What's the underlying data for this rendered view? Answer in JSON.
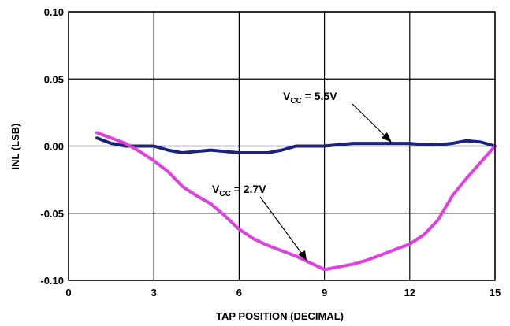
{
  "chart_data": {
    "type": "line",
    "title": "",
    "xlabel": "TAP POSITION (DECIMAL)",
    "ylabel": "INL (LSB)",
    "xlim": [
      0,
      15
    ],
    "ylim": [
      -0.1,
      0.1
    ],
    "x_ticks": [
      "0",
      "3",
      "6",
      "9",
      "12",
      "15"
    ],
    "y_ticks": [
      "0.10",
      "0.05",
      "0.00",
      "-0.05",
      "-0.10"
    ],
    "grid": true,
    "series": [
      {
        "color": "#1a237e",
        "x": [
          1,
          1.5,
          2,
          2.5,
          3,
          3.5,
          4,
          4.5,
          5,
          5.5,
          6,
          6.5,
          7,
          7.5,
          8,
          8.5,
          9,
          9.5,
          10,
          10.5,
          11,
          11.5,
          12,
          12.5,
          13,
          13.5,
          14,
          14.5,
          15
        ],
        "y": [
          0.006,
          0.002,
          0.0,
          0.0,
          0.0,
          -0.003,
          -0.005,
          -0.004,
          -0.003,
          -0.004,
          -0.005,
          -0.005,
          -0.005,
          -0.003,
          0.0,
          0.0,
          0.0,
          0.001,
          0.002,
          0.002,
          0.002,
          0.002,
          0.002,
          0.001,
          0.001,
          0.002,
          0.004,
          0.003,
          0.0
        ]
      },
      {
        "color": "#e040e0",
        "x": [
          1,
          1.5,
          2,
          2.5,
          3,
          3.5,
          4,
          4.5,
          5,
          5.5,
          6,
          6.5,
          7,
          7.5,
          8,
          8.5,
          9,
          9.5,
          10,
          10.5,
          11,
          11.5,
          12,
          12.5,
          13,
          13.5,
          14,
          14.5,
          15
        ],
        "y": [
          0.01,
          0.006,
          0.002,
          -0.004,
          -0.011,
          -0.019,
          -0.03,
          -0.037,
          -0.043,
          -0.052,
          -0.062,
          -0.069,
          -0.074,
          -0.078,
          -0.082,
          -0.087,
          -0.092,
          -0.09,
          -0.088,
          -0.085,
          -0.081,
          -0.077,
          -0.073,
          -0.066,
          -0.055,
          -0.037,
          -0.024,
          -0.012,
          0.0
        ]
      }
    ],
    "annotations": [
      {
        "prefix": "V",
        "subscript": "CC",
        "text": " = 5.5V"
      },
      {
        "prefix": "V",
        "subscript": "CC",
        "text": " = 2.7V"
      }
    ]
  }
}
